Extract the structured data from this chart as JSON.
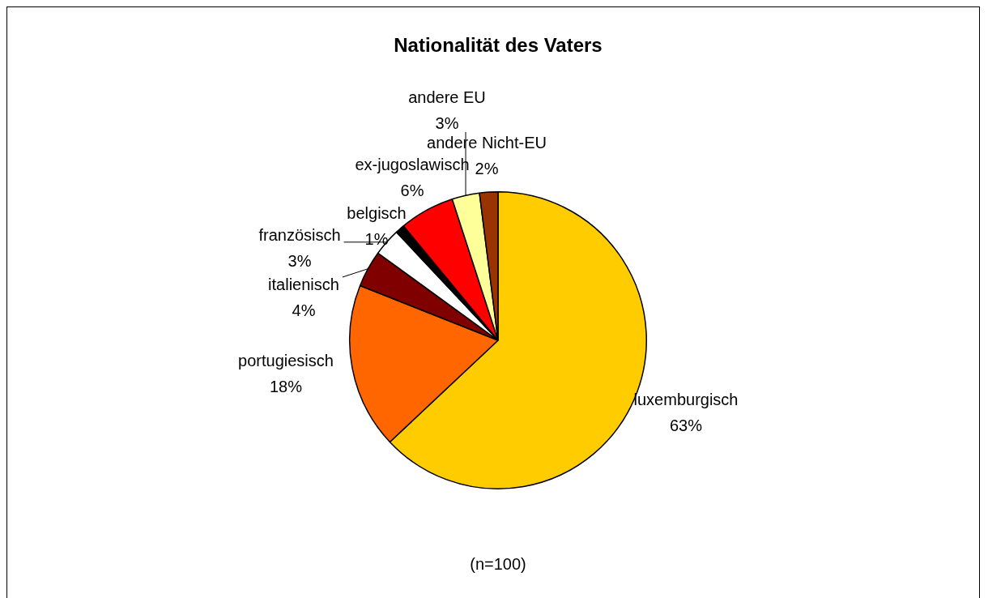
{
  "chart_data": {
    "type": "pie",
    "title": "Nationalität des Vaters",
    "categories": [
      "luxemburgisch",
      "portugiesisch",
      "italienisch",
      "französisch",
      "belgisch",
      "ex-jugoslawisch",
      "andere EU",
      "andere Nicht-EU"
    ],
    "values": [
      63,
      18,
      4,
      3,
      1,
      6,
      3,
      2
    ],
    "value_labels": [
      "63%",
      "18%",
      "4%",
      "3%",
      "1%",
      "6%",
      "3%",
      "2%"
    ],
    "colors": [
      "#ffcc00",
      "#ff6600",
      "#800000",
      "#ffffff",
      "#000000",
      "#ff0000",
      "#ffff99",
      "#993300"
    ],
    "annotations": [
      "(n=100)"
    ]
  }
}
